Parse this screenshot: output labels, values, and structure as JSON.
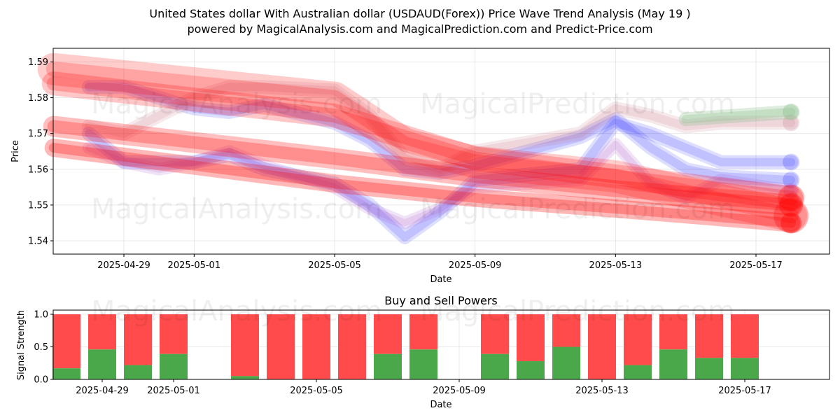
{
  "header": {
    "title_line1": "United States dollar With Australian dollar (USDAUD(Forex)) Price Wave Trend Analysis (May 19 )",
    "title_line2": "powered by MagicalAnalysis.com and MagicalPrediction.com and Predict-Price.com"
  },
  "watermarks": [
    "MagicalAnalysis.com",
    "MagicalPrediction.com"
  ],
  "colors": {
    "bullish": "#ff0000",
    "bearish": "#0000ff",
    "buy": "#4aa84a",
    "sell": "#ff4b4b",
    "forecast": "#90c090"
  },
  "chart_data": [
    {
      "type": "line",
      "title": "",
      "xlabel": "Date",
      "ylabel": "Price",
      "x_ticks": [
        "2025-04-29",
        "2025-05-01",
        "2025-05-05",
        "2025-05-09",
        "2025-05-13",
        "2025-05-17"
      ],
      "y_ticks": [
        1.54,
        1.55,
        1.56,
        1.57,
        1.58,
        1.59
      ],
      "xlim": [
        "2025-04-27",
        "2025-05-18"
      ],
      "ylim": [
        1.536,
        1.594
      ],
      "grid": true,
      "series": [
        {
          "x": [
            "2025-04-28",
            "2025-04-29",
            "2025-04-30",
            "2025-05-01",
            "2025-05-02",
            "2025-05-03",
            "2025-05-05",
            "2025-05-06",
            "2025-05-07",
            "2025-05-08",
            "2025-05-09",
            "2025-05-12",
            "2025-05-13",
            "2025-05-14",
            "2025-05-15",
            "2025-05-16",
            "2025-05-18"
          ],
          "values": [
            1.583,
            1.583,
            1.58,
            1.577,
            1.576,
            1.578,
            1.573,
            1.568,
            1.56,
            1.559,
            1.561,
            1.569,
            1.574,
            1.566,
            1.56,
            1.558,
            1.557
          ]
        },
        {
          "x": [
            "2025-04-28",
            "2025-04-29",
            "2025-04-30",
            "2025-05-01",
            "2025-05-02",
            "2025-05-03",
            "2025-05-05",
            "2025-05-06",
            "2025-05-07",
            "2025-05-08",
            "2025-05-09",
            "2025-05-12",
            "2025-05-13",
            "2025-05-14",
            "2025-05-15",
            "2025-05-16",
            "2025-05-18"
          ],
          "values": [
            1.57,
            1.562,
            1.562,
            1.562,
            1.564,
            1.56,
            1.556,
            1.55,
            1.541,
            1.548,
            1.557,
            1.56,
            1.573,
            1.57,
            1.566,
            1.562,
            1.562
          ]
        },
        {
          "x": [
            "2025-04-28",
            "2025-04-29",
            "2025-04-30",
            "2025-05-01",
            "2025-05-02",
            "2025-05-03",
            "2025-05-05",
            "2025-05-06",
            "2025-05-07",
            "2025-05-08",
            "2025-05-09",
            "2025-05-12",
            "2025-05-13",
            "2025-05-14",
            "2025-05-15",
            "2025-05-16",
            "2025-05-18"
          ],
          "values": [
            1.566,
            1.562,
            1.56,
            1.562,
            1.565,
            1.561,
            1.555,
            1.549,
            1.545,
            1.549,
            1.555,
            1.557,
            1.567,
            1.556,
            1.552,
            1.557,
            1.554
          ]
        },
        {
          "x": [
            "2025-04-28",
            "2025-04-29",
            "2025-04-30",
            "2025-05-01",
            "2025-05-02",
            "2025-05-03",
            "2025-05-05",
            "2025-05-06",
            "2025-05-07",
            "2025-05-08",
            "2025-05-09",
            "2025-05-12",
            "2025-05-13",
            "2025-05-14",
            "2025-05-15",
            "2025-05-16",
            "2025-05-18"
          ],
          "values": [
            1.572,
            1.57,
            1.575,
            1.58,
            1.583,
            1.583,
            1.582,
            1.575,
            1.563,
            1.56,
            1.565,
            1.57,
            1.577,
            1.575,
            1.572,
            1.573,
            1.573
          ]
        },
        {
          "x": [
            "2025-04-27",
            "2025-05-05",
            "2025-05-09",
            "2025-05-13",
            "2025-05-18"
          ],
          "values": [
            1.584,
            1.575,
            1.563,
            1.558,
            1.552
          ]
        },
        {
          "x": [
            "2025-04-27",
            "2025-05-05",
            "2025-05-09",
            "2025-05-13",
            "2025-05-18"
          ],
          "values": [
            1.572,
            1.563,
            1.558,
            1.554,
            1.55
          ]
        },
        {
          "x": [
            "2025-04-27",
            "2025-05-05",
            "2025-05-09",
            "2025-05-13",
            "2025-05-18"
          ],
          "values": [
            1.566,
            1.556,
            1.552,
            1.549,
            1.545
          ]
        },
        {
          "x": [
            "2025-04-27",
            "2025-05-05",
            "2025-05-07",
            "2025-05-09",
            "2025-05-13",
            "2025-05-18"
          ],
          "values": [
            1.588,
            1.58,
            1.567,
            1.562,
            1.558,
            1.547
          ]
        },
        {
          "x": [
            "2025-05-15",
            "2025-05-18"
          ],
          "values": [
            1.574,
            1.576
          ]
        }
      ]
    },
    {
      "type": "bar",
      "title": "Buy and Sell Powers",
      "xlabel": "Date",
      "ylabel": "Signal Strength",
      "x_ticks": [
        "2025-04-29",
        "2025-05-01",
        "2025-05-05",
        "2025-05-09",
        "2025-05-13",
        "2025-05-17"
      ],
      "y_ticks": [
        "0.0",
        "0.5",
        "1.0"
      ],
      "ylim": [
        0,
        1.05
      ],
      "grid": true,
      "categories": [
        "2025-04-28",
        "2025-04-29",
        "2025-04-30",
        "2025-05-01",
        "2025-05-03",
        "2025-05-04",
        "2025-05-05",
        "2025-05-06",
        "2025-05-07",
        "2025-05-08",
        "2025-05-10",
        "2025-05-11",
        "2025-05-12",
        "2025-05-13",
        "2025-05-14",
        "2025-05-15",
        "2025-05-16",
        "2025-05-17"
      ],
      "series": [
        {
          "name": "Buy",
          "values": [
            0.17,
            0.46,
            0.22,
            0.39,
            0.05,
            0.0,
            0.0,
            0.0,
            0.39,
            0.46,
            0.39,
            0.28,
            0.5,
            0.0,
            0.22,
            0.46,
            0.33,
            0.33
          ]
        },
        {
          "name": "Sell",
          "values": [
            0.83,
            0.54,
            0.78,
            0.61,
            0.95,
            1.0,
            1.0,
            1.0,
            0.61,
            0.54,
            0.61,
            0.72,
            0.5,
            1.0,
            0.78,
            0.54,
            0.67,
            0.67
          ]
        }
      ]
    }
  ]
}
